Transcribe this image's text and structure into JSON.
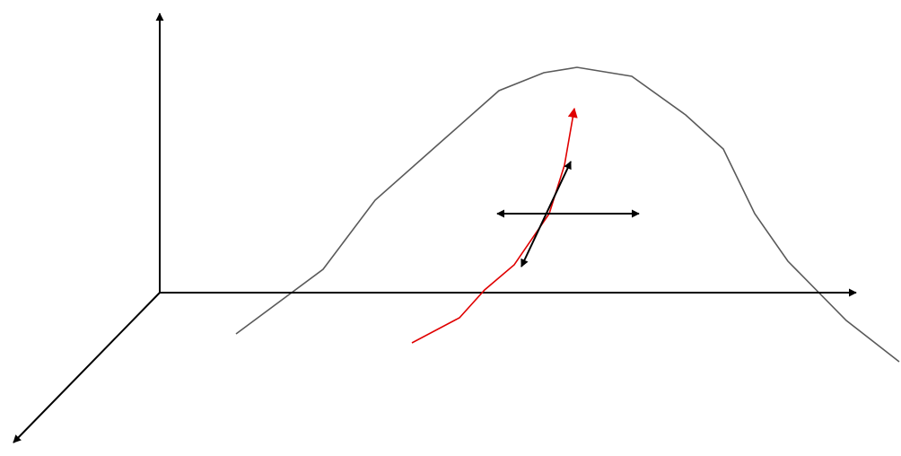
{
  "colors": {
    "background": "#ffffff",
    "axis": "#000000",
    "surface_curve": "#5a5a5a",
    "path_curve": "#e00000",
    "vector": "#000000"
  },
  "diagram": {
    "axes": [
      "vertical-axis",
      "horizontal-axis",
      "depth-axis"
    ],
    "curves": [
      "surface-curve",
      "path-curve"
    ],
    "vectors": [
      "horizontal-double-arrow",
      "diagonal-double-arrow"
    ],
    "labels": []
  }
}
